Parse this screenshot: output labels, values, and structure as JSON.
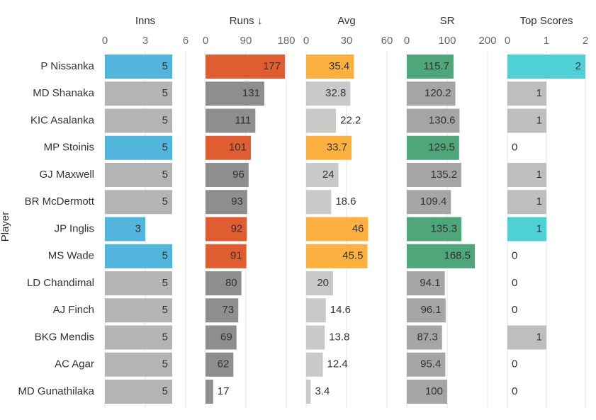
{
  "chart_data": [
    {
      "type": "bar",
      "orientation": "horizontal",
      "title": "Inns",
      "y_label": "Player",
      "categories": [
        "P Nissanka",
        "MD Shanaka",
        "KIC Asalanka",
        "MP Stoinis",
        "GJ Maxwell",
        "BR McDermott",
        "JP Inglis",
        "MS Wade",
        "LD Chandimal",
        "AJ Finch",
        "BKG Mendis",
        "AC Agar",
        "MD Gunathilaka"
      ],
      "values": [
        5,
        5,
        5,
        5,
        5,
        5,
        3,
        5,
        5,
        5,
        5,
        5,
        5
      ],
      "colors": [
        "#52b5dc",
        "#b4b4b4",
        "#b4b4b4",
        "#52b5dc",
        "#b4b4b4",
        "#b4b4b4",
        "#52b5dc",
        "#52b5dc",
        "#b4b4b4",
        "#b4b4b4",
        "#b4b4b4",
        "#b4b4b4",
        "#b4b4b4"
      ],
      "xlim": [
        0,
        6
      ],
      "xticks": [
        0,
        3,
        6
      ],
      "grid": true
    },
    {
      "type": "bar",
      "orientation": "horizontal",
      "title": "Runs ↓",
      "values": [
        177,
        131,
        111,
        101,
        96,
        93,
        92,
        91,
        80,
        73,
        69,
        62,
        17
      ],
      "colors": [
        "#e05d31",
        "#8e8e8e",
        "#8e8e8e",
        "#e05d31",
        "#8e8e8e",
        "#8e8e8e",
        "#e05d31",
        "#e05d31",
        "#8e8e8e",
        "#8e8e8e",
        "#8e8e8e",
        "#8e8e8e",
        "#8e8e8e"
      ],
      "xlim": [
        0,
        180
      ],
      "xticks": [
        0,
        90,
        180
      ],
      "grid": true
    },
    {
      "type": "bar",
      "orientation": "horizontal",
      "title": "Avg",
      "values": [
        35.4,
        32.8,
        22.2,
        33.7,
        24,
        18.6,
        46,
        45.5,
        20,
        14.6,
        13.8,
        12.4,
        3.4
      ],
      "colors": [
        "#fbb03f",
        "#c9c9c9",
        "#c9c9c9",
        "#fbb03f",
        "#c9c9c9",
        "#c9c9c9",
        "#fbb03f",
        "#fbb03f",
        "#c9c9c9",
        "#c9c9c9",
        "#c9c9c9",
        "#c9c9c9",
        "#c9c9c9"
      ],
      "xlim": [
        0,
        60
      ],
      "xticks": [
        0,
        30,
        60
      ],
      "grid": true
    },
    {
      "type": "bar",
      "orientation": "horizontal",
      "title": "SR",
      "values": [
        115.7,
        120.2,
        130.6,
        129.5,
        135.2,
        109.4,
        135.3,
        168.5,
        94.1,
        96.1,
        87.3,
        95.4,
        100
      ],
      "colors": [
        "#4fa67a",
        "#a5a5a5",
        "#a5a5a5",
        "#4fa67a",
        "#a5a5a5",
        "#a5a5a5",
        "#4fa67a",
        "#4fa67a",
        "#a5a5a5",
        "#a5a5a5",
        "#a5a5a5",
        "#a5a5a5",
        "#a5a5a5"
      ],
      "xlim": [
        0,
        200
      ],
      "xticks": [
        0,
        100,
        200
      ],
      "grid": true
    },
    {
      "type": "bar",
      "orientation": "horizontal",
      "title": "Top Scores",
      "values": [
        2,
        1,
        1,
        0,
        1,
        1,
        1,
        0,
        0,
        0,
        1,
        0,
        0
      ],
      "colors": [
        "#4fd0d5",
        "#bebebe",
        "#bebebe",
        "#bebebe",
        "#bebebe",
        "#bebebe",
        "#4fd0d5",
        "#bebebe",
        "#bebebe",
        "#bebebe",
        "#bebebe",
        "#bebebe",
        "#bebebe"
      ],
      "xlim": [
        0,
        2
      ],
      "xticks": [
        0,
        1,
        2
      ],
      "grid": true
    }
  ]
}
